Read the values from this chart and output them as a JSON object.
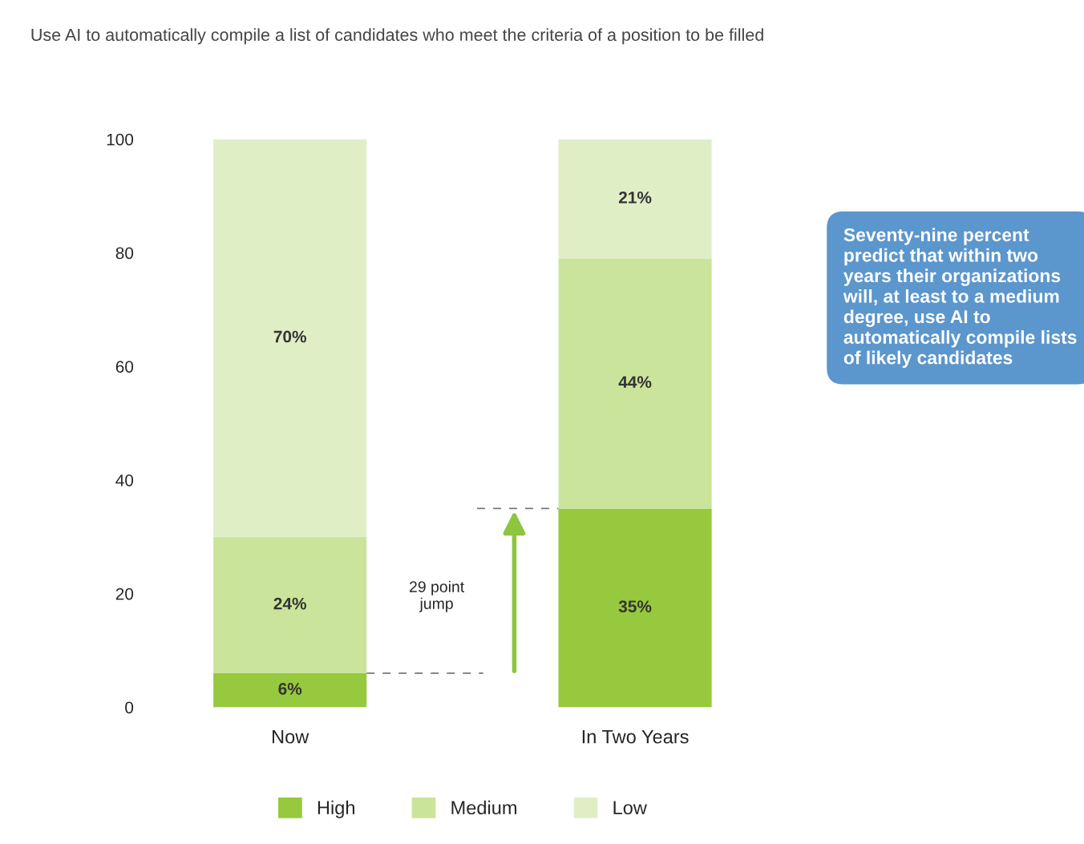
{
  "chart_data": {
    "type": "bar",
    "title": "Use AI to automatically compile a list of candidates who meet the criteria of a position to be filled",
    "categories": [
      "Now",
      "In Two Years"
    ],
    "stacked": true,
    "series": [
      {
        "name": "High",
        "color": "#96c93d",
        "values": [
          6,
          35
        ],
        "value_labels": [
          "6%",
          "35%"
        ]
      },
      {
        "name": "Medium",
        "color": "#cbe49b",
        "values": [
          24,
          44
        ],
        "value_labels": [
          "24%",
          "44%"
        ]
      },
      {
        "name": "Low",
        "color": "#e0eec6",
        "values": [
          70,
          21
        ],
        "value_labels": [
          "70%",
          "21%"
        ]
      }
    ],
    "ylim": [
      0,
      100
    ],
    "yticks": [
      0,
      20,
      40,
      60,
      80,
      100
    ],
    "grid": false,
    "legend": "bottom",
    "ref_lines": [
      {
        "axis": "y",
        "value": 6,
        "line_style": "dashed",
        "color": "#777777"
      },
      {
        "axis": "y",
        "value": 35,
        "line_style": "dashed",
        "color": "#777777"
      }
    ],
    "annotations": [
      "29 point jump",
      "Seventy-nine percent predict that within two years their organizations will, at least to a medium degree, use AI to automatically compile lists of likely candidates"
    ]
  }
}
